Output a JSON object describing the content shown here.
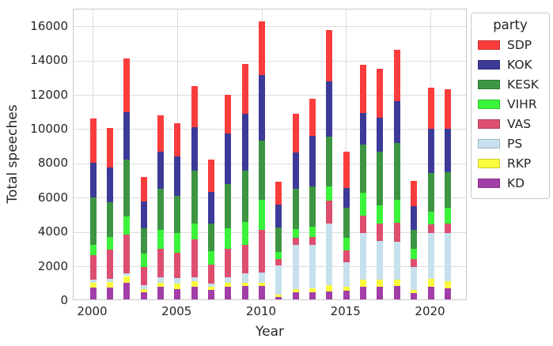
{
  "figure": {
    "background": "#ffffff",
    "text_color": "#262626",
    "grid_color": "#dcdcdc",
    "spine_color": "#c9c9c9"
  },
  "chart_data": {
    "type": "bar",
    "stacked": true,
    "title": "",
    "xlabel": "Year",
    "ylabel": "Total speeches",
    "legend_title": "party",
    "legend_position": "outside upper right",
    "grid": true,
    "ylim": [
      0,
      17000
    ],
    "y_ticks": [
      0,
      2000,
      4000,
      6000,
      8000,
      10000,
      12000,
      14000,
      16000
    ],
    "x_ticks": [
      2000,
      2005,
      2010,
      2015,
      2020
    ],
    "x": [
      2000,
      2001,
      2002,
      2003,
      2004,
      2005,
      2006,
      2007,
      2008,
      2009,
      2010,
      2011,
      2012,
      2013,
      2014,
      2015,
      2016,
      2017,
      2018,
      2019,
      2020,
      2021
    ],
    "stack_order_bottom_to_top": [
      "KD",
      "RKP",
      "PS",
      "VAS",
      "VIHR",
      "KESK",
      "KOK",
      "SDP"
    ],
    "legend_order_top_to_bottom": [
      "SDP",
      "KOK",
      "KESK",
      "VIHR",
      "VAS",
      "PS",
      "RKP",
      "KD"
    ],
    "series": [
      {
        "name": "SDP",
        "color": "#fa3d3c",
        "values": [
          2610,
          2300,
          3150,
          1430,
          2100,
          1920,
          2400,
          1870,
          2280,
          2930,
          3110,
          1340,
          2230,
          2160,
          3000,
          2110,
          2830,
          2860,
          3000,
          1470,
          2400,
          2300
        ]
      },
      {
        "name": "KOK",
        "color": "#3c3a98",
        "values": [
          2020,
          2040,
          2750,
          1540,
          2150,
          2310,
          2550,
          1850,
          2930,
          3320,
          3810,
          1310,
          2150,
          2950,
          3230,
          1180,
          1820,
          1970,
          2420,
          1380,
          2590,
          2510
        ]
      },
      {
        "name": "KESK",
        "color": "#3d9543",
        "values": [
          2730,
          2040,
          3330,
          1500,
          2420,
          2200,
          3070,
          1610,
          2580,
          2990,
          3490,
          1430,
          2360,
          2360,
          2880,
          1740,
          2850,
          3120,
          3310,
          1080,
          2230,
          2110
        ]
      },
      {
        "name": "VIHR",
        "color": "#3bf33b",
        "values": [
          610,
          730,
          1030,
          770,
          1120,
          1110,
          920,
          770,
          1190,
          1310,
          1740,
          410,
          490,
          570,
          850,
          730,
          1300,
          1060,
          1360,
          610,
          740,
          900
        ]
      },
      {
        "name": "VAS",
        "color": "#dd4e6f",
        "values": [
          1450,
          1690,
          2290,
          1080,
          1650,
          1510,
          2220,
          1150,
          1680,
          1700,
          2460,
          390,
          430,
          500,
          1300,
          710,
          1050,
          1040,
          1100,
          460,
          540,
          540
        ]
      },
      {
        "name": "PS",
        "color": "#c6e0ed",
        "values": [
          150,
          180,
          140,
          200,
          330,
          290,
          240,
          150,
          340,
          510,
          600,
          1670,
          2550,
          2510,
          3600,
          1430,
          2680,
          2230,
          2190,
          1360,
          2650,
          2840
        ]
      },
      {
        "name": "RKP",
        "color": "#fbfb3d",
        "values": [
          300,
          330,
          410,
          180,
          220,
          330,
          300,
          210,
          230,
          190,
          190,
          140,
          210,
          230,
          390,
          220,
          420,
          420,
          370,
          190,
          480,
          400
        ]
      },
      {
        "name": "KD",
        "color": "#a23ea8",
        "values": [
          690,
          690,
          950,
          430,
          730,
          610,
          750,
          540,
          720,
          800,
          800,
          160,
          400,
          420,
          450,
          500,
          750,
          750,
          800,
          350,
          720,
          650
        ]
      }
    ]
  }
}
